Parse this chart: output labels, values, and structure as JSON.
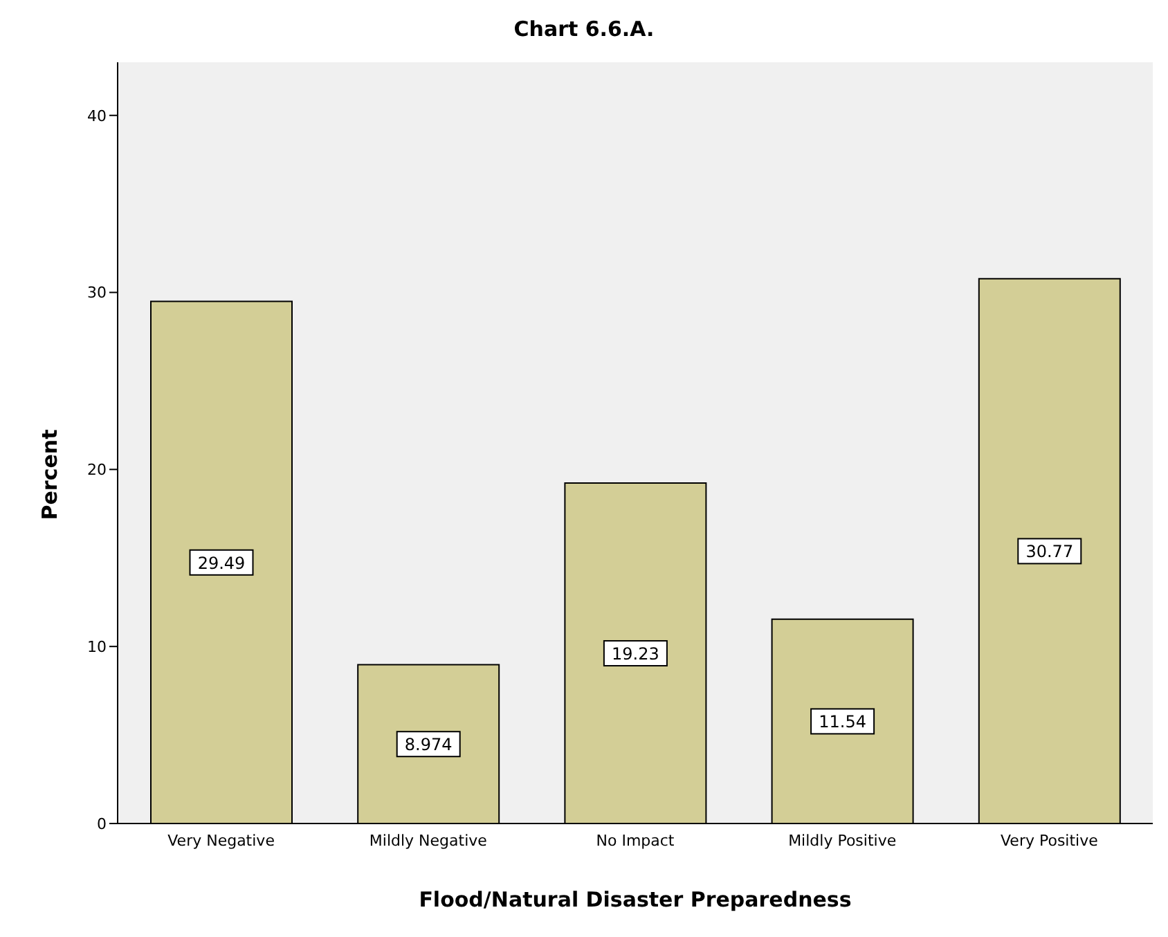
{
  "chart_data": {
    "type": "bar",
    "title": "Chart 6.6.A.",
    "xlabel": "Flood/Natural Disaster Preparedness",
    "ylabel": "Percent",
    "categories": [
      "Very Negative",
      "Mildly Negative",
      "No Impact",
      "Mildly Positive",
      "Very Positive"
    ],
    "values": [
      29.49,
      8.974,
      19.23,
      11.54,
      30.77
    ],
    "color": "#d3ce96",
    "ylim": [
      0,
      43
    ],
    "yticks": [
      0,
      10,
      20,
      30,
      40
    ],
    "grid": false,
    "data_labels": true
  }
}
